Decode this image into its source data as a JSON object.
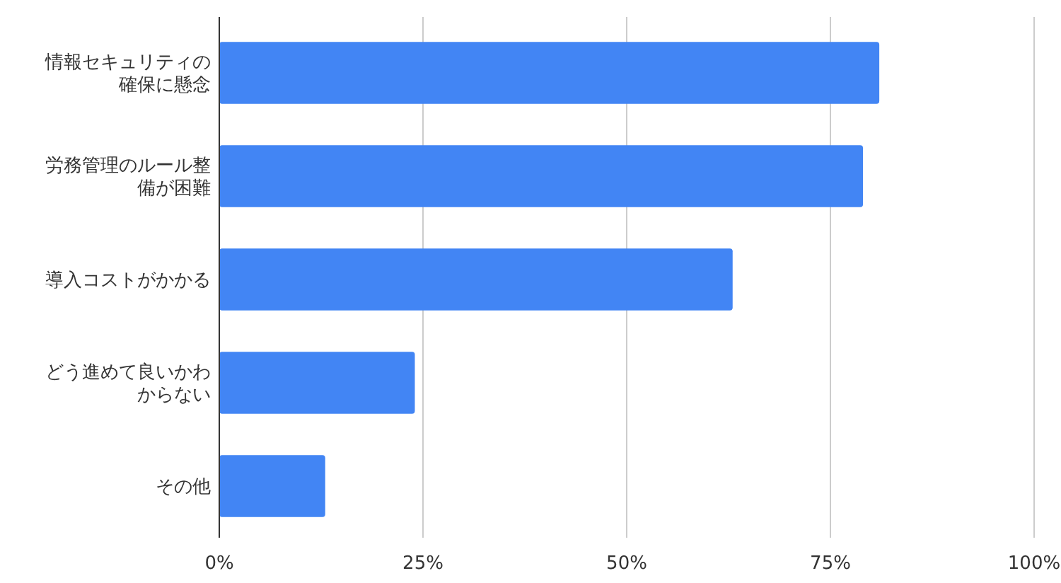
{
  "chart_data": {
    "type": "bar",
    "orientation": "horizontal",
    "categories": [
      "情報セキュリティの確保に懸念",
      "労務管理のルール整備が困難",
      "導入コストがかかる",
      "どう進めて良いかわからない",
      "その他"
    ],
    "values": [
      81,
      79,
      63,
      24,
      13
    ],
    "color": "#4285f4",
    "xlim": [
      0,
      100
    ],
    "xticks": [
      {
        "value": 0,
        "label": "0%"
      },
      {
        "value": 25,
        "label": "25%"
      },
      {
        "value": 50,
        "label": "50%"
      },
      {
        "value": 75,
        "label": "75%"
      },
      {
        "value": 100,
        "label": "100%"
      }
    ],
    "grid": "x"
  }
}
